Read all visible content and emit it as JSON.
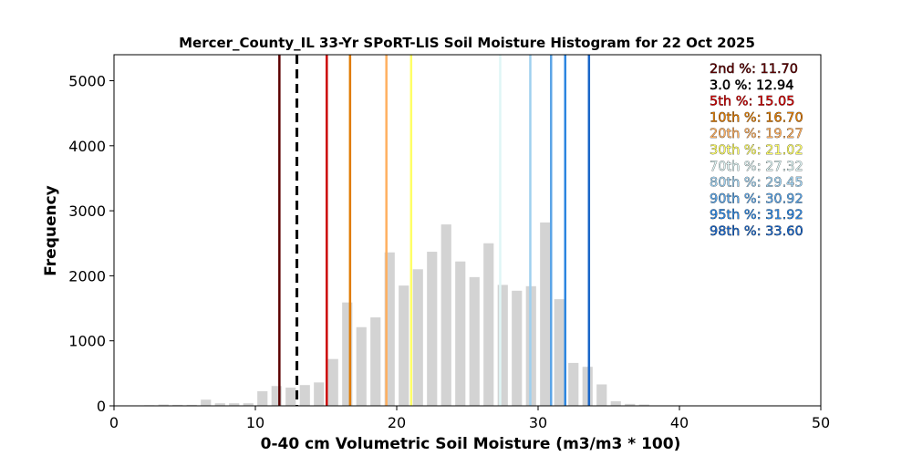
{
  "chart_data": {
    "type": "bar",
    "title": "Mercer_County_IL 33-Yr SPoRT-LIS Soil Moisture Histogram for 22 Oct 2025",
    "xlabel": "0-40 cm Volumetric Soil Moisture (m3/m3 * 100)",
    "ylabel": "Frequency",
    "xlim": [
      0,
      50
    ],
    "ylim": [
      0,
      5400
    ],
    "xticks": [
      "0",
      "10",
      "20",
      "30",
      "40",
      "50"
    ],
    "yticks": [
      "0",
      "1000",
      "2000",
      "3000",
      "4000",
      "5000"
    ],
    "grid": false,
    "bar_color": "#d3d3d3",
    "bins": [
      {
        "x": 2.5,
        "value": 10
      },
      {
        "x": 3.5,
        "value": 20
      },
      {
        "x": 4.5,
        "value": 15
      },
      {
        "x": 5.5,
        "value": 15
      },
      {
        "x": 6.5,
        "value": 95
      },
      {
        "x": 7.5,
        "value": 40
      },
      {
        "x": 8.5,
        "value": 40
      },
      {
        "x": 9.5,
        "value": 40
      },
      {
        "x": 10.5,
        "value": 225
      },
      {
        "x": 11.5,
        "value": 305
      },
      {
        "x": 12.5,
        "value": 280
      },
      {
        "x": 13.5,
        "value": 320
      },
      {
        "x": 14.5,
        "value": 360
      },
      {
        "x": 15.5,
        "value": 720
      },
      {
        "x": 16.5,
        "value": 1590
      },
      {
        "x": 17.5,
        "value": 1210
      },
      {
        "x": 18.5,
        "value": 1360
      },
      {
        "x": 19.5,
        "value": 2360
      },
      {
        "x": 20.5,
        "value": 1850
      },
      {
        "x": 21.5,
        "value": 2100
      },
      {
        "x": 22.5,
        "value": 2370
      },
      {
        "x": 23.5,
        "value": 2790
      },
      {
        "x": 24.5,
        "value": 2220
      },
      {
        "x": 25.5,
        "value": 1980
      },
      {
        "x": 26.5,
        "value": 2500
      },
      {
        "x": 27.5,
        "value": 1860
      },
      {
        "x": 28.5,
        "value": 1770
      },
      {
        "x": 29.5,
        "value": 1840
      },
      {
        "x": 30.5,
        "value": 2820
      },
      {
        "x": 31.5,
        "value": 1640
      },
      {
        "x": 32.5,
        "value": 660
      },
      {
        "x": 33.5,
        "value": 600
      },
      {
        "x": 34.5,
        "value": 330
      },
      {
        "x": 35.5,
        "value": 70
      },
      {
        "x": 36.5,
        "value": 30
      },
      {
        "x": 37.5,
        "value": 20
      }
    ],
    "percentiles": [
      {
        "label": "2nd %: 11.70",
        "value": 11.7,
        "color": "#5c0000",
        "dashed": false
      },
      {
        "label": "3.0 %: 12.94",
        "value": 12.94,
        "color": "#000000",
        "dashed": true
      },
      {
        "label": "5th %: 15.05",
        "value": 15.05,
        "color": "#cc0000",
        "dashed": false
      },
      {
        "label": "10th %: 16.70",
        "value": 16.7,
        "color": "#e07b00",
        "dashed": false
      },
      {
        "label": "20th %: 19.27",
        "value": 19.27,
        "color": "#ffb060",
        "dashed": false
      },
      {
        "label": "30th %: 21.02",
        "value": 21.02,
        "color": "#ffff66",
        "dashed": false
      },
      {
        "label": "70th %: 27.32",
        "value": 27.32,
        "color": "#dff6f6",
        "dashed": false
      },
      {
        "label": "80th %: 29.45",
        "value": 29.45,
        "color": "#9fd0ef",
        "dashed": false
      },
      {
        "label": "90th %: 30.92",
        "value": 30.92,
        "color": "#5aa4e6",
        "dashed": false
      },
      {
        "label": "95th %: 31.92",
        "value": 31.92,
        "color": "#2d86e0",
        "dashed": false
      },
      {
        "label": "98th %: 33.60",
        "value": 33.6,
        "color": "#1a66c8",
        "dashed": false
      }
    ],
    "legend_placement": "upper-right"
  }
}
